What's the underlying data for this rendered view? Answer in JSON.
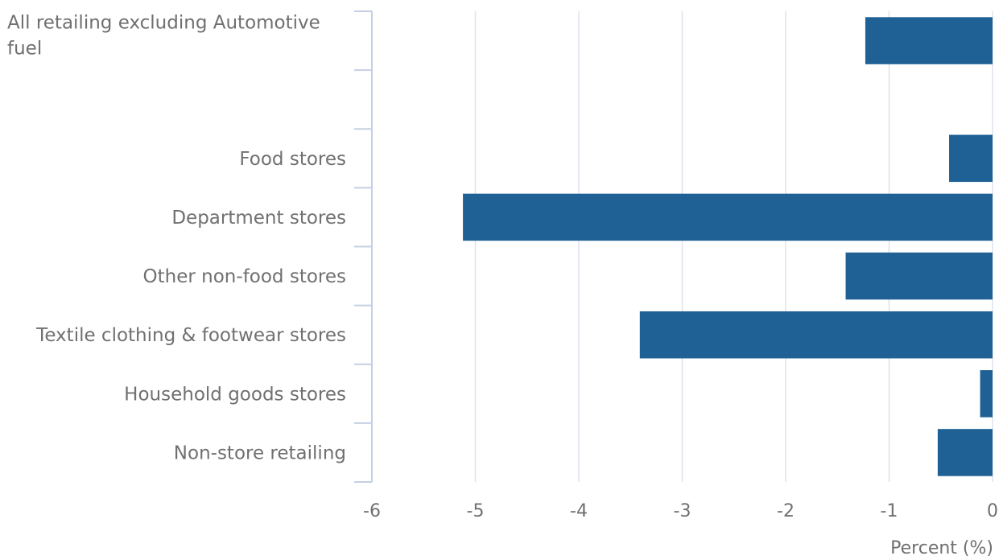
{
  "chart_data": {
    "type": "bar",
    "orientation": "horizontal",
    "title": "",
    "xlabel": "Percent (%)",
    "ylabel": "",
    "categories": [
      "All retailing excluding Automotive fuel",
      "",
      "Food stores",
      "Department stores",
      "Other non-food stores",
      "Textile clothing & footwear stores",
      "Household goods stores",
      "Non-store retailing"
    ],
    "values": [
      -1.23,
      null,
      -0.42,
      -5.12,
      -1.42,
      -3.41,
      -0.12,
      -0.53
    ],
    "xlim": [
      -6,
      0
    ],
    "xticks": [
      "-6",
      "-5",
      "-4",
      "-3",
      "-2",
      "-1",
      "0"
    ],
    "grid": true,
    "legend": "none",
    "colors": {
      "bar": "#1f6095",
      "grid": "#dde3ec",
      "axis": "#c5d0e4",
      "text": "#707070"
    }
  }
}
